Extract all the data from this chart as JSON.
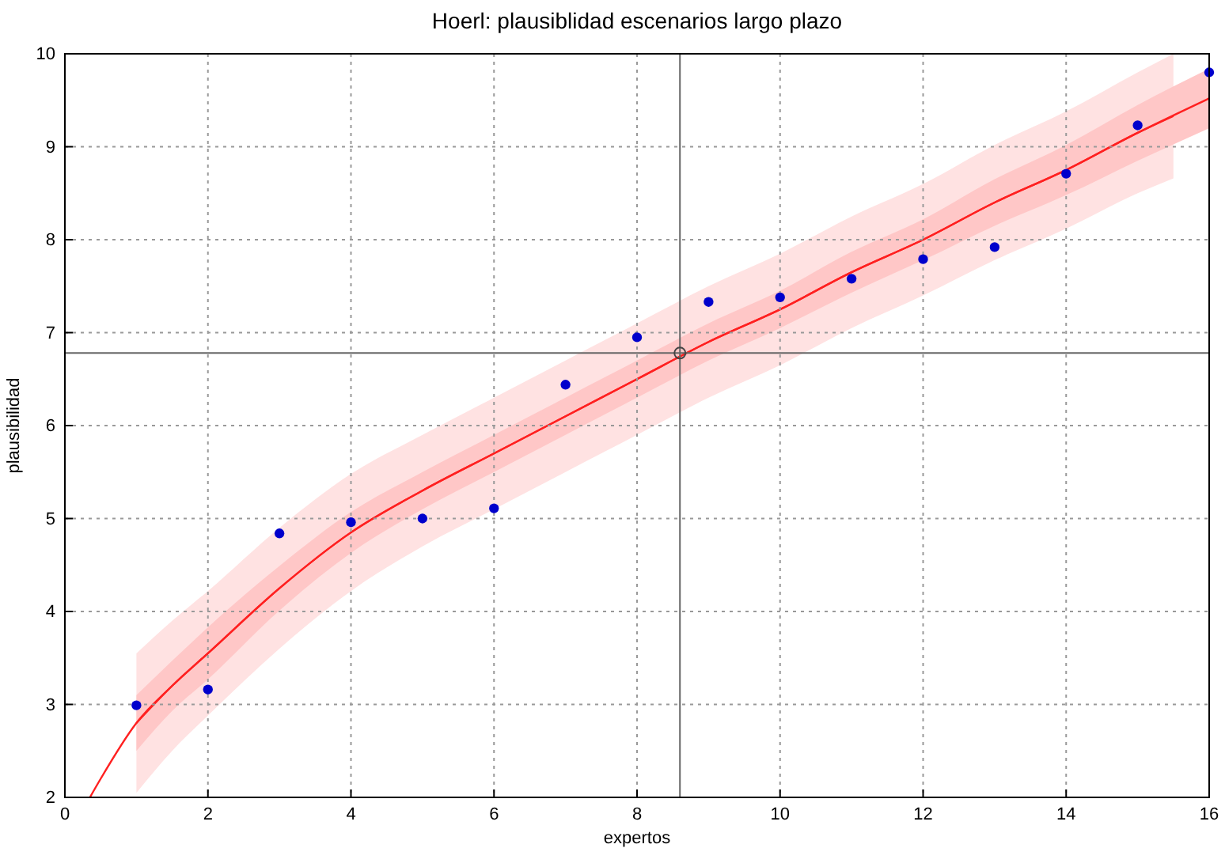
{
  "chart_data": {
    "type": "scatter",
    "title": "Hoerl: plausiblidad escenarios largo plazo",
    "xlabel": "expertos",
    "ylabel": "plausibilidad",
    "xlim": [
      0,
      16
    ],
    "ylim": [
      2,
      10
    ],
    "xticks": [
      0,
      2,
      4,
      6,
      8,
      10,
      12,
      14,
      16
    ],
    "yticks": [
      2,
      3,
      4,
      5,
      6,
      7,
      8,
      9,
      10
    ],
    "grid": true,
    "line_style": "solid",
    "marker": "circle",
    "series": [
      {
        "color": "#0000cc",
        "x": [
          1,
          2,
          3,
          4,
          5,
          6,
          7,
          8,
          9,
          10,
          11,
          12,
          13,
          14,
          15,
          16
        ],
        "values": [
          2.99,
          3.16,
          4.84,
          4.96,
          5.0,
          5.11,
          6.44,
          6.95,
          7.33,
          7.38,
          7.58,
          7.79,
          7.92,
          8.71,
          9.23,
          9.8
        ]
      },
      {
        "type": "line",
        "marker": "none",
        "color": "#ff2020",
        "x": [
          1,
          1.5,
          2,
          3,
          4,
          5,
          6,
          7,
          8,
          9,
          10,
          11,
          12,
          13,
          14,
          15,
          15.5
        ],
        "values": [
          2.8,
          3.2,
          3.55,
          4.25,
          4.85,
          5.3,
          5.7,
          6.1,
          6.5,
          6.9,
          7.25,
          7.65,
          8.0,
          8.4,
          8.75,
          9.15,
          9.33
        ],
        "lower": [
          2.05,
          2.5,
          2.88,
          3.6,
          4.22,
          4.7,
          5.1,
          5.5,
          5.9,
          6.3,
          6.65,
          7.05,
          7.4,
          7.78,
          8.12,
          8.5,
          8.66
        ],
        "upper": [
          3.55,
          3.9,
          4.22,
          4.9,
          5.48,
          5.9,
          6.3,
          6.7,
          7.1,
          7.5,
          7.85,
          8.25,
          8.6,
          9.02,
          9.38,
          9.8,
          10.0
        ]
      },
      {
        "type": "line",
        "marker": "none",
        "color": "#ff2020",
        "x": [
          0.35,
          0.5,
          1,
          1.5,
          2,
          3,
          4,
          5,
          6,
          7,
          8,
          9,
          10,
          11,
          12,
          13,
          14,
          15,
          16
        ],
        "values": [
          2.0,
          2.2,
          2.8,
          3.2,
          3.55,
          4.25,
          4.85,
          5.3,
          5.7,
          6.1,
          6.5,
          6.9,
          7.25,
          7.65,
          8.0,
          8.4,
          8.75,
          9.15,
          9.52
        ],
        "lower": [
          null,
          null,
          2.5,
          2.93,
          3.27,
          4.01,
          4.63,
          5.1,
          5.5,
          5.9,
          6.3,
          6.7,
          7.05,
          7.43,
          7.78,
          8.15,
          8.48,
          8.85,
          9.2
        ],
        "upper": [
          null,
          null,
          3.1,
          3.47,
          3.83,
          4.49,
          5.07,
          5.5,
          5.9,
          6.3,
          6.7,
          7.1,
          7.45,
          7.87,
          8.22,
          8.65,
          9.02,
          9.45,
          9.84
        ]
      }
    ],
    "ref_lines": [
      {
        "axis": "x",
        "value": 8.6,
        "color": "#666666"
      },
      {
        "axis": "y",
        "value": 6.78,
        "color": "#666666"
      }
    ]
  }
}
